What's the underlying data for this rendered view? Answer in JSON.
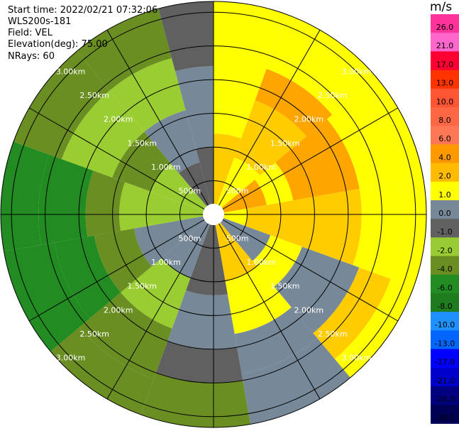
{
  "header": {
    "start_time": "Start time: 2022/02/21 07:32:06",
    "instrument": "WLS200s-181",
    "field": "Field: VEL",
    "elevation": "Elevation(deg): 75.00",
    "nrays": "NRays: 60"
  },
  "range_rings": {
    "labels": [
      "500m",
      "1.00km",
      "1.50km",
      "2.00km",
      "2.50km",
      "3.00km"
    ],
    "values_km": [
      0.5,
      1.0,
      1.5,
      2.0,
      2.5,
      3.0
    ]
  },
  "colorbar": {
    "unit": "m/s",
    "ticks": [
      "26.0",
      "21.0",
      "17.0",
      "13.0",
      "10.0",
      "8.0",
      "6.0",
      "4.0",
      "2.0",
      "1.0",
      "0.0",
      "-1.0",
      "-2.0",
      "-4.0",
      "-6.0",
      "-8.0",
      "-10.0",
      "-13.0",
      "-17.0",
      "-21.0",
      "-26.0",
      "-30.0"
    ],
    "colors": [
      "#ff3399",
      "#ff66cc",
      "#ff0033",
      "#ff3300",
      "#ff5533",
      "#ff6644",
      "#ff7755",
      "#ff9900",
      "#ffbb00",
      "#ffff00",
      "#778899",
      "#606060",
      "#99cc33",
      "#6b8e23",
      "#228b22",
      "#1e7b1e",
      "#1e90ff",
      "#0066ff",
      "#0000ff",
      "#0000cc",
      "#000080",
      "#000055"
    ]
  },
  "velocity_colors": {
    "yellow": "#ffff00",
    "gold": "#ffcc00",
    "orange": "#ffa500",
    "slate": "#778899",
    "gray": "#606060",
    "light_green": "#9acd32",
    "olive": "#6b8e23",
    "dark_green": "#228b22"
  }
}
